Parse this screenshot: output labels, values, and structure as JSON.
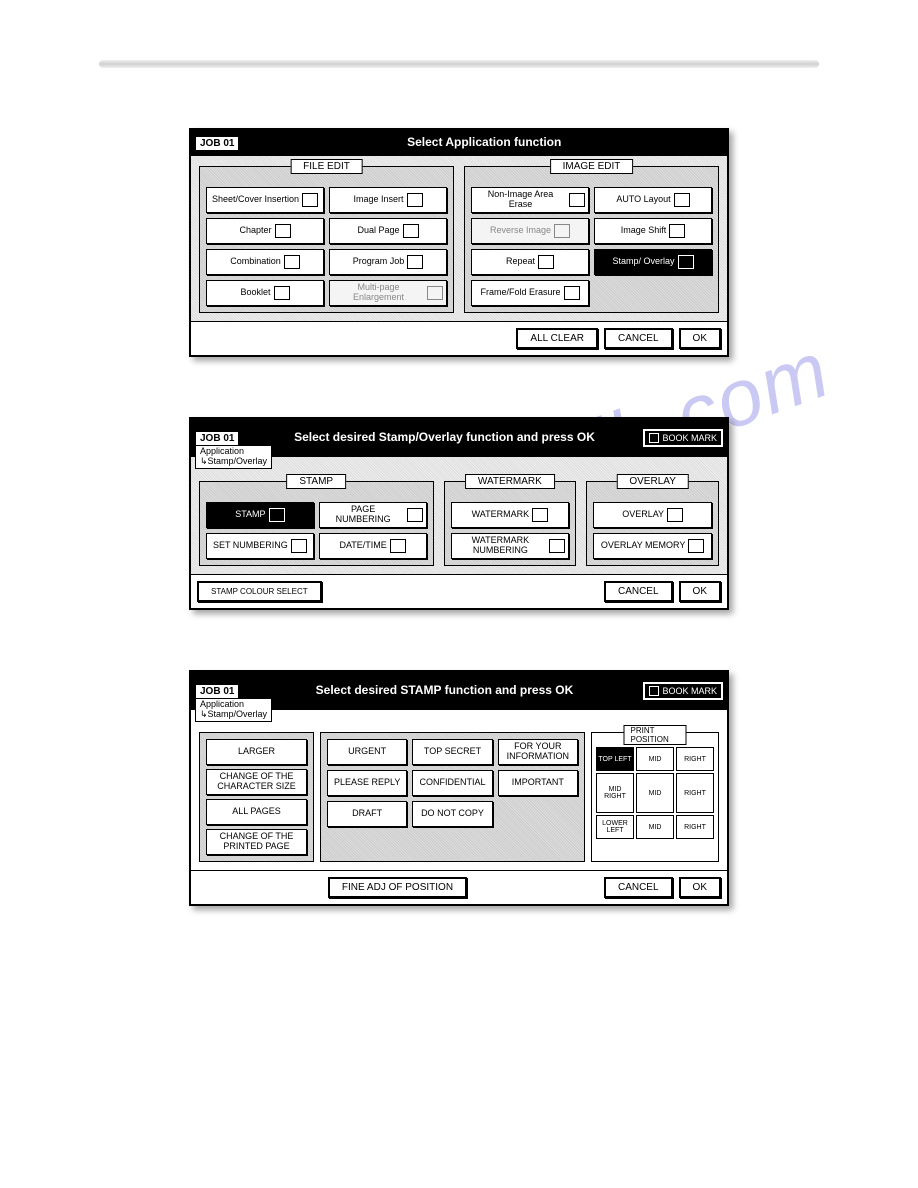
{
  "top_rule": true,
  "watermark_text": "manualslib.com",
  "panel1": {
    "job": "JOB 01",
    "title": "Select Application function",
    "file_edit_label": "FILE EDIT",
    "image_edit_label": "IMAGE EDIT",
    "file_buttons": [
      "Sheet/Cover Insertion",
      "Image Insert",
      "Chapter",
      "Dual Page",
      "Combination",
      "Program Job",
      "Booklet",
      "Multi-page Enlargement"
    ],
    "image_buttons": [
      "Non-Image Area Erase",
      "AUTO Layout",
      "Reverse Image",
      "Image Shift",
      "Repeat",
      "Stamp/ Overlay",
      "Frame/Fold Erasure",
      ""
    ],
    "image_disabled": [
      false,
      false,
      true,
      false,
      false,
      false,
      false,
      false
    ],
    "image_selected_index": 5,
    "actions": [
      "ALL CLEAR",
      "CANCEL",
      "OK"
    ]
  },
  "panel2": {
    "job": "JOB 01",
    "breadcrumb1": "Application",
    "breadcrumb2": "↳Stamp/Overlay",
    "title": "Select desired Stamp/Overlay function and press OK",
    "bookmark": "BOOK MARK",
    "stamp_label": "STAMP",
    "watermark_label": "WATERMARK",
    "overlay_label": "OVERLAY",
    "stamp_buttons": [
      "STAMP",
      "PAGE NUMBERING",
      "SET NUMBERING",
      "DATE/TIME"
    ],
    "stamp_selected_index": 0,
    "watermark_buttons": [
      "WATERMARK",
      "WATERMARK NUMBERING"
    ],
    "overlay_buttons": [
      "OVERLAY",
      "OVERLAY MEMORY"
    ],
    "stamp_colour": "STAMP COLOUR SELECT",
    "actions": [
      "CANCEL",
      "OK"
    ]
  },
  "panel3": {
    "job": "JOB 01",
    "breadcrumb1": "Application",
    "breadcrumb2": "↳Stamp/Overlay",
    "title": "Select desired STAMP function and press OK",
    "bookmark": "BOOK MARK",
    "left": [
      "LARGER",
      "CHANGE OF THE CHARACTER SIZE",
      "ALL PAGES",
      "CHANGE OF THE PRINTED PAGE"
    ],
    "mid_row1": [
      "URGENT",
      "TOP SECRET",
      "FOR YOUR INFORMATION"
    ],
    "mid_row2": [
      "PLEASE REPLY",
      "CONFIDENTIAL",
      "IMPORTANT"
    ],
    "mid_row3": [
      "DRAFT",
      "DO NOT COPY"
    ],
    "print_pos_label": "PRINT POSITION",
    "pp": [
      "TOP LEFT",
      "MID",
      "RIGHT",
      "MID RIGHT",
      "MID",
      "RIGHT",
      "LOWER LEFT",
      "MID",
      "RIGHT"
    ],
    "pp_selected_index": 0,
    "fine_adj": "FINE ADJ OF POSITION",
    "actions": [
      "CANCEL",
      "OK"
    ]
  }
}
